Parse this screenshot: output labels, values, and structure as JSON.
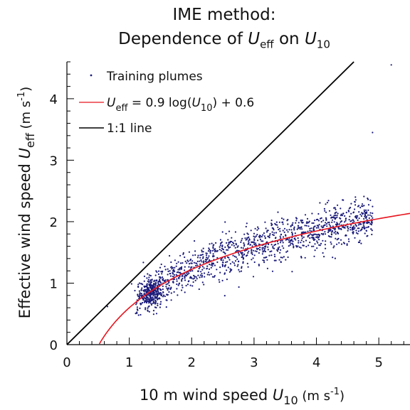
{
  "chart_data": {
    "type": "scatter",
    "title_line1": "IME method:",
    "title_line2_prefix": "Dependence of ",
    "title_var1": "U",
    "title_var1_sub": "eff",
    "title_mid": " on ",
    "title_var2": "U",
    "title_var2_sub": "10",
    "xlabel_prefix": "10 m wind speed ",
    "xlabel_var": "U",
    "xlabel_sub": "10",
    "xlabel_unit": " (m s",
    "xlabel_unit_exp": "-1",
    "xlabel_unit_end": ")",
    "ylabel_prefix": "Effective wind speed ",
    "ylabel_var": "U",
    "ylabel_sub": "eff",
    "ylabel_unit": "  (m s",
    "ylabel_unit_exp": "-1",
    "ylabel_unit_end": ")",
    "xlim": [
      0,
      5.5
    ],
    "ylim": [
      0,
      4.6
    ],
    "xticks": [
      0,
      1,
      2,
      3,
      4,
      5
    ],
    "yticks": [
      0,
      1,
      2,
      3,
      4
    ],
    "legend": {
      "placement": "top-left",
      "entries": [
        {
          "label": "Training plumes",
          "color": "#1a1a7a"
        },
        {
          "label_prefix": "",
          "label_var": "U",
          "label_sub": "eff",
          "label_mid": " = 0.9 log(",
          "label_var2": "U",
          "label_sub2": "10",
          "label_end": ") + 0.6",
          "color": "#e8141e"
        },
        {
          "label": "1:1 line",
          "color": "#000000"
        }
      ]
    },
    "series": [
      {
        "kind": "scatter",
        "color": "#1a1a7a",
        "outliers": [
          [
            0.65,
            0.62
          ],
          [
            4.9,
            3.45
          ],
          [
            5.2,
            4.55
          ]
        ]
      },
      {
        "kind": "fit",
        "color": "#e8141e",
        "a": 0.9,
        "b": 0.6,
        "x_start": 0.52,
        "x_end": 5.5
      },
      {
        "kind": "identity",
        "color": "#000000",
        "x": [
          0,
          4.6
        ],
        "y": [
          0,
          4.6
        ]
      }
    ]
  }
}
